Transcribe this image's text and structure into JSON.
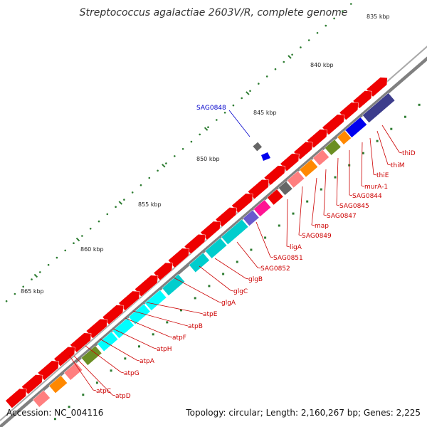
{
  "title": "Streptococcus agalactiae 2603V/R, complete genome",
  "footer": {
    "accession": "Accession: NC_004116",
    "stats": "Topology: circular; Length: 2,160,267 bp; Genes: 2,225"
  },
  "colors": {
    "backbone": "#808080",
    "forward_gene": "#ee0000",
    "minor_tick": "#2e7d32",
    "major_tick": "#2e7d32",
    "label_red": "#cc0000",
    "label_blue": "#0000cc"
  },
  "tick_labels": [
    "835 kbp",
    "840 kbp",
    "845 kbp",
    "850 kbp",
    "855 kbp",
    "860 kbp",
    "865 kbp"
  ],
  "gene_labels": [
    "thiD",
    "thiM",
    "thiE",
    "murA-1",
    "SAG0844",
    "SAG0845",
    "SAG0847",
    "map",
    "SAG0849",
    "ligA",
    "SAG0851",
    "SAG0852",
    "glgB",
    "glgC",
    "glgA",
    "atpE",
    "atpB",
    "atpF",
    "atpH",
    "atpA",
    "atpG",
    "atpC",
    "atpD"
  ],
  "callout_label": "SAG0848"
}
